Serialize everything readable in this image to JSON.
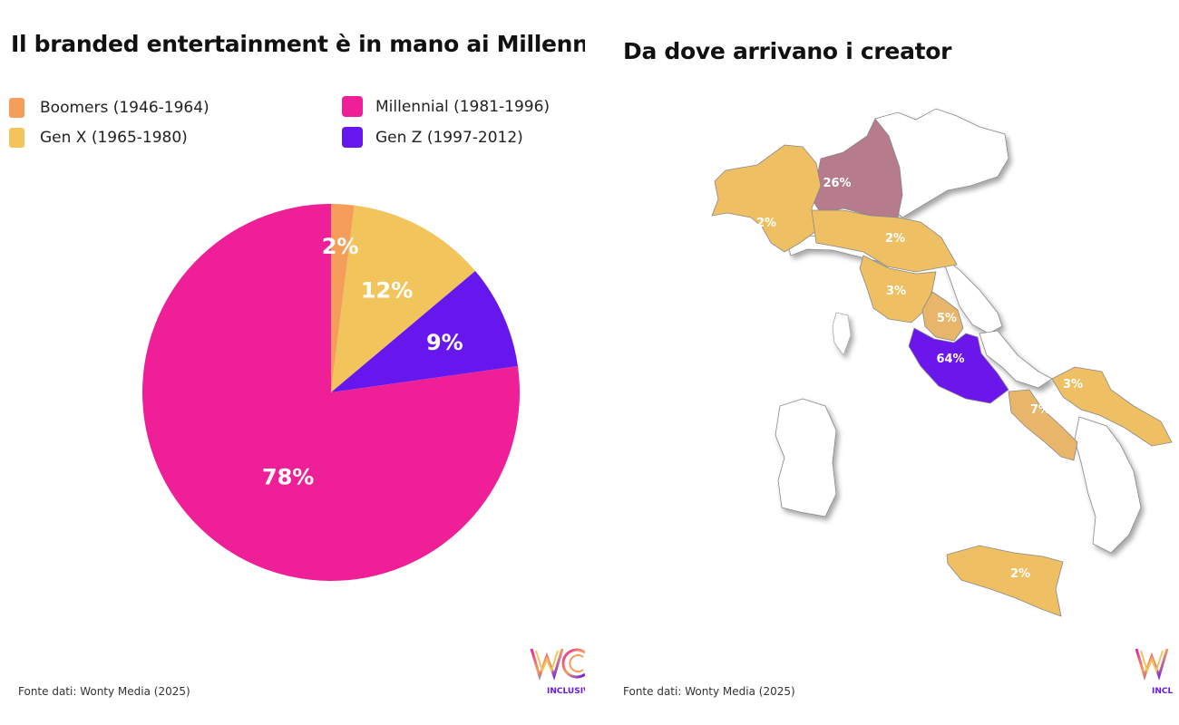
{
  "left": {
    "title": "Il branded entertainment è in mano ai Millennial",
    "source": "Fonte dati: Wonty Media (2025)",
    "logo_sub": "INCLUSIV"
  },
  "right": {
    "title": "Da dove arrivano i creator",
    "source": "Fonte dati: Wonty Media (2025)",
    "logo_sub": "INCL"
  },
  "colors": {
    "boomers": "#F59E5B",
    "genx": "#F2C55C",
    "millennial": "#EE1F97",
    "genz": "#6517EE",
    "region_low": "#EFC063",
    "region_mid": "#E8B66A",
    "region_north": "#B67C8C",
    "region_top": "#6B17EC"
  },
  "chart_data": [
    {
      "type": "pie",
      "title": "Il branded entertainment è in mano ai Millennial",
      "legend_position": "top",
      "slices": [
        {
          "key": "boomers",
          "label": "Boomers (1946-1964)",
          "value": 2,
          "display": "2%"
        },
        {
          "key": "genx",
          "label": "Gen X (1965-1980)",
          "value": 12,
          "display": "12%"
        },
        {
          "key": "genz",
          "label": "Gen Z (1997-2012)",
          "value": 9,
          "display": "9%"
        },
        {
          "key": "millennial",
          "label": "Millennial (1981-1996)",
          "value": 78,
          "display": "78%"
        }
      ]
    },
    {
      "type": "heatmap",
      "title": "Da dove arrivano i creator",
      "regions": [
        {
          "name": "Lombardia",
          "value": 26,
          "display": "26%"
        },
        {
          "name": "Piemonte",
          "value": 2,
          "display": "2%"
        },
        {
          "name": "Emilia-Romagna",
          "value": 2,
          "display": "2%"
        },
        {
          "name": "Toscana",
          "value": 3,
          "display": "3%"
        },
        {
          "name": "Umbria",
          "value": 5,
          "display": "5%"
        },
        {
          "name": "Lazio",
          "value": 64,
          "display": "64%"
        },
        {
          "name": "Puglia",
          "value": 3,
          "display": "3%"
        },
        {
          "name": "Campania",
          "value": 7,
          "display": "7%"
        },
        {
          "name": "Sicilia",
          "value": 2,
          "display": "2%"
        }
      ]
    }
  ]
}
